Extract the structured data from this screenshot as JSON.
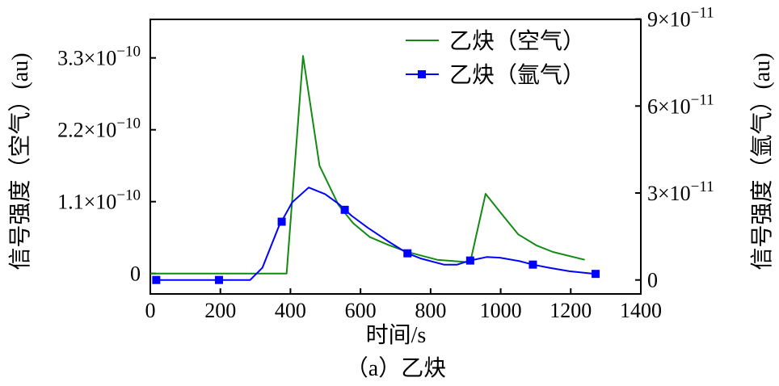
{
  "chart_data": {
    "type": "line",
    "title": "",
    "caption": "（a）乙炔",
    "xlabel": "时间/s",
    "ylabel_left": "信号强度（空气）(au)",
    "ylabel_right": "信号强度（氩气）(au)",
    "xlim": [
      0,
      1400
    ],
    "ylim_left": [
      -3e-11,
      3.85e-10
    ],
    "ylim_right": [
      -1.5e-12,
      9e-11
    ],
    "x_ticks": [
      0,
      200,
      400,
      600,
      800,
      1000,
      1200,
      1400
    ],
    "x_tick_labels": [
      "0",
      "200",
      "400",
      "600",
      "800",
      "1000",
      "1200",
      "1400"
    ],
    "y_left_ticks": [
      0,
      1.1e-10,
      2.2e-10,
      3.3e-10
    ],
    "y_left_tick_labels": [
      {
        "m": "0",
        "e": ""
      },
      {
        "m": "1.1×10",
        "e": "−10"
      },
      {
        "m": "2.2×10",
        "e": "−10"
      },
      {
        "m": "3.3×10",
        "e": "−10"
      }
    ],
    "y_right_ticks": [
      0,
      3e-11,
      6e-11,
      9e-11
    ],
    "y_right_tick_labels": [
      {
        "m": "0",
        "e": ""
      },
      {
        "m": "3×10",
        "e": "−11"
      },
      {
        "m": "6×10",
        "e": "−11"
      },
      {
        "m": "9×10",
        "e": "−11"
      }
    ],
    "grid": false,
    "legend_position": "top-right",
    "series": [
      {
        "name": "乙炔（空气）",
        "axis": "left",
        "color": "#138a13",
        "marker": "none",
        "x": [
          0,
          389,
          436,
          483,
          537,
          579,
          626,
          678,
          734,
          819,
          913,
          957,
          1003,
          1050,
          1102,
          1149,
          1240
        ],
        "y": [
          0,
          0,
          3.33e-10,
          1.65e-10,
          1.05e-10,
          7.7e-11,
          5.6e-11,
          4.4e-11,
          3.3e-11,
          2.1e-11,
          1.7e-11,
          1.22e-10,
          9.1e-11,
          6e-11,
          4.3e-11,
          3.3e-11,
          2.1e-11
        ]
      },
      {
        "name": "乙炔（氩气）",
        "axis": "right",
        "color": "#0000ff",
        "marker": "square",
        "x": [
          17,
          196,
          285,
          320,
          367,
          405,
          452,
          499,
          537,
          574,
          621,
          678,
          734,
          772,
          838,
          876,
          913,
          960,
          998,
          1054,
          1092,
          1139,
          1196,
          1271
        ],
        "y": [
          0,
          0,
          0,
          4.2e-12,
          1.85e-11,
          2.68e-11,
          3.19e-11,
          2.96e-11,
          2.63e-11,
          2.22e-11,
          1.8e-11,
          1.34e-11,
          9.2e-12,
          7.4e-12,
          5.3e-12,
          5.3e-12,
          6.7e-12,
          7.9e-12,
          7.7e-12,
          6.5e-12,
          5.3e-12,
          4.2e-12,
          3e-12,
          2.1e-12
        ],
        "marker_x": [
          17,
          196,
          375,
          555,
          734,
          913,
          1092,
          1271
        ],
        "marker_y": [
          0,
          0,
          2.01e-11,
          2.42e-11,
          9.2e-12,
          6.7e-12,
          5.3e-12,
          2.1e-12
        ]
      }
    ]
  }
}
